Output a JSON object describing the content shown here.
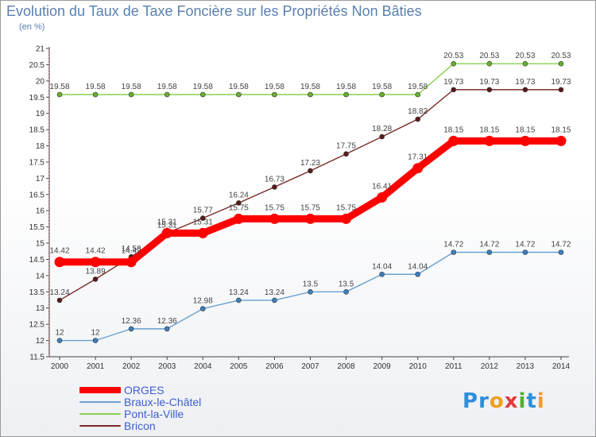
{
  "header": {
    "title": "Evolution du Taux de Taxe Foncière sur les Propriétés Non Bâties",
    "unit": "(en %)"
  },
  "logo": {
    "text": "Proxiti"
  },
  "chart_data": {
    "type": "line",
    "title": "Evolution du Taux de Taxe Foncière sur les Propriétés Non Bâties",
    "ylabel": "(en %)",
    "xlabel": "",
    "ylim": [
      11.5,
      21
    ],
    "yticks": [
      "11.5",
      "12",
      "12.5",
      "13",
      "13.5",
      "14",
      "14.5",
      "15",
      "15.5",
      "16",
      "16.5",
      "17",
      "17.5",
      "18",
      "18.5",
      "19",
      "19.5",
      "20",
      "20.5",
      "21"
    ],
    "x": [
      "2000",
      "2001",
      "2002",
      "2003",
      "2004",
      "2005",
      "2006",
      "2007",
      "2008",
      "2009",
      "2010",
      "2011",
      "2012",
      "2013",
      "2014"
    ],
    "grid": false,
    "legend_position": "bottom-left",
    "series": [
      {
        "name": "Pont-la-Ville",
        "color": "#88d050",
        "marker": "#68b030",
        "values": [
          19.58,
          19.58,
          19.58,
          19.58,
          19.58,
          19.58,
          19.58,
          19.58,
          19.58,
          19.58,
          19.58,
          20.53,
          20.53,
          20.53,
          20.53
        ],
        "labels": [
          "19.58",
          "19.58",
          "19.58",
          "19.58",
          "19.58",
          "19.58",
          "19.58",
          "19.58",
          "19.58",
          "19.58",
          "19.58",
          "20.53",
          "20.53",
          "20.53",
          "20.53"
        ]
      },
      {
        "name": "Bricon",
        "color": "#7a2a2a",
        "marker": "#5a1a1a",
        "values": [
          13.24,
          13.89,
          14.58,
          15.31,
          15.77,
          16.24,
          16.73,
          17.23,
          17.75,
          18.28,
          18.82,
          19.73,
          19.73,
          19.73,
          19.73
        ],
        "labels": [
          "13.24",
          "13.89",
          "14.58",
          "15.31",
          "15.77",
          "16.24",
          "16.73",
          "17.23",
          "17.75",
          "18.28",
          "18.82",
          "19.73",
          "19.73",
          "19.73",
          "19.73"
        ]
      },
      {
        "name": "Braux-le-Châtel",
        "color": "#6aa0d0",
        "marker": "#3a80c0",
        "values": [
          12,
          12,
          12.36,
          12.36,
          12.98,
          13.24,
          13.24,
          13.5,
          13.5,
          14.04,
          14.04,
          14.72,
          14.72,
          14.72,
          14.72
        ],
        "labels": [
          "12",
          "12",
          "12.36",
          "12.36",
          "12.98",
          "13.24",
          "13.24",
          "13.5",
          "13.5",
          "14.04",
          "14.04",
          "14.72",
          "14.72",
          "14.72",
          "14.72"
        ]
      },
      {
        "name": "ORGES",
        "color": "#ff0000",
        "marker": "#ff0000",
        "values": [
          14.42,
          14.42,
          14.42,
          15.31,
          15.31,
          15.75,
          15.75,
          15.75,
          15.75,
          16.41,
          17.31,
          18.15,
          18.15,
          18.15,
          18.15
        ],
        "labels": [
          "14.42",
          "14.42",
          "14.42",
          "15.31",
          "15.31",
          "15.75",
          "15.75",
          "15.75",
          "15.75",
          "16.41",
          "17.31",
          "18.15",
          "18.15",
          "18.15",
          "18.15"
        ]
      }
    ],
    "legend": [
      "ORGES",
      "Braux-le-Châtel",
      "Pont-la-Ville",
      "Bricon"
    ]
  }
}
